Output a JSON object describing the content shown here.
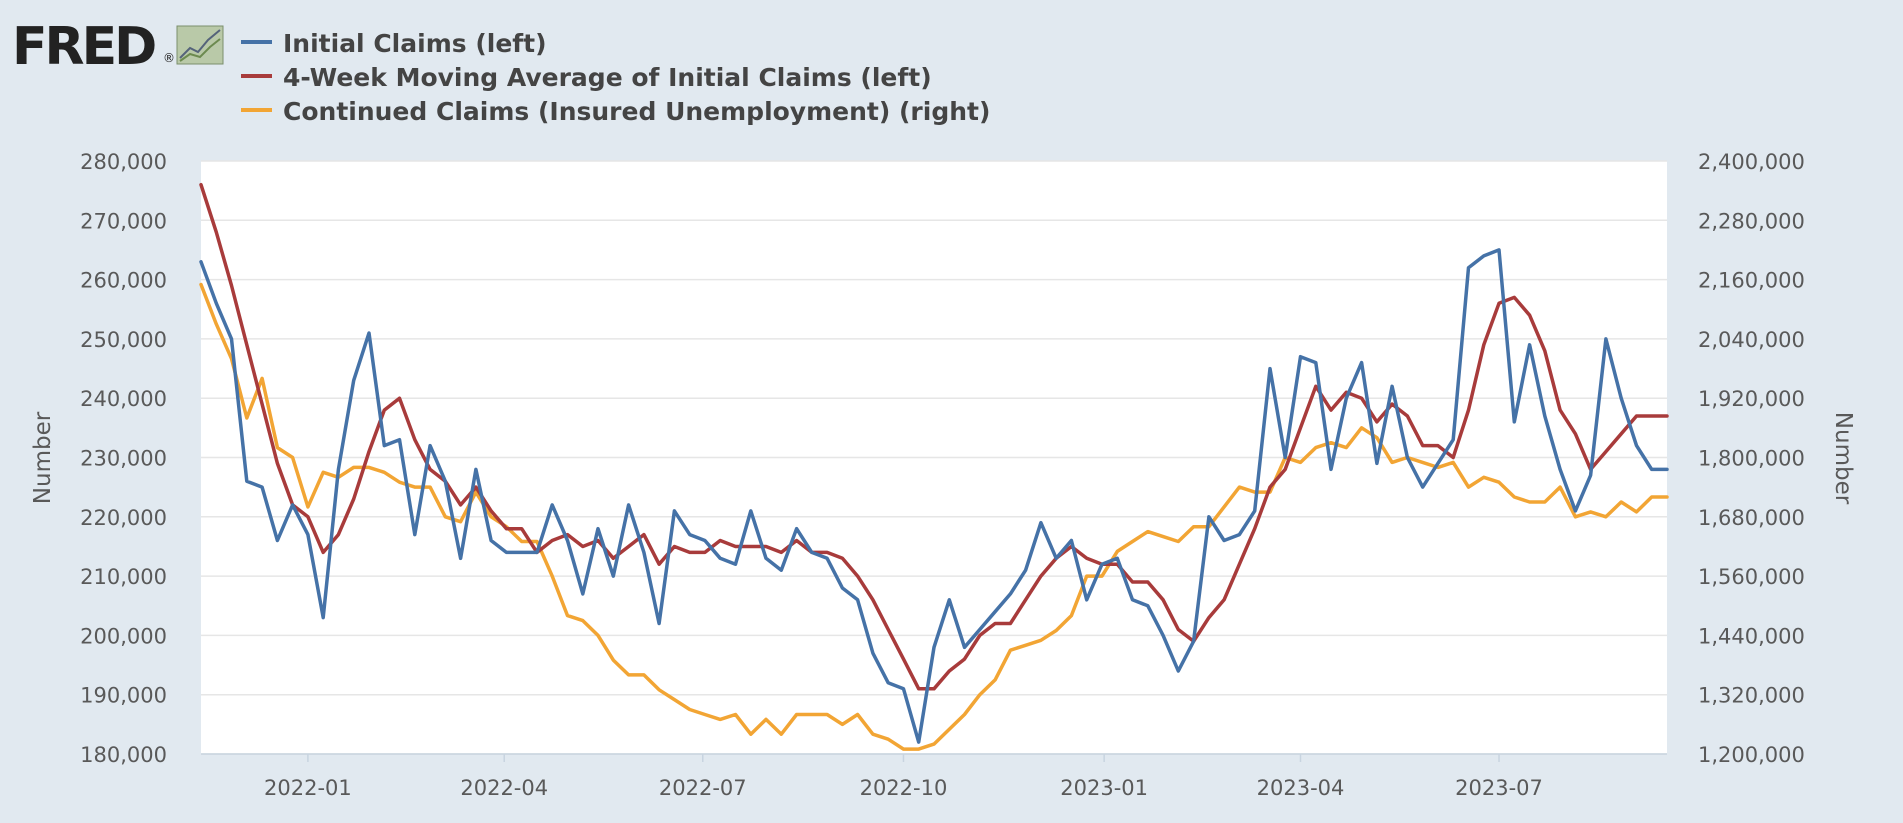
{
  "logo": {
    "text": "FRED",
    "mark": "®",
    "icon": "chart-line-icon"
  },
  "colors": {
    "initial_claims": "#4572a7",
    "moving_average": "#a83b3b",
    "continued_claims": "#f2a534",
    "background": "#e1e9f0",
    "plot_background": "#ffffff",
    "grid": "#e6e6e6"
  },
  "chart_data": {
    "type": "line",
    "title": "",
    "legend_placement": "top-left",
    "grid": true,
    "x_tick_labels": [
      "2022-01",
      "2022-04",
      "2022-07",
      "2022-10",
      "2023-01",
      "2023-04",
      "2023-07"
    ],
    "x_tick_dates": [
      "2022-01-01",
      "2022-04-01",
      "2022-07-01",
      "2022-10-01",
      "2023-01-01",
      "2023-04-01",
      "2023-07-01"
    ],
    "xlim": [
      "2021-11-13",
      "2023-09-16"
    ],
    "left_axis": {
      "label": "Number",
      "ylim": [
        180000,
        280000
      ],
      "tick_labels": [
        "180,000",
        "190,000",
        "200,000",
        "210,000",
        "220,000",
        "230,000",
        "240,000",
        "250,000",
        "260,000",
        "270,000",
        "280,000"
      ]
    },
    "right_axis": {
      "label": "Number",
      "ylim": [
        1200000,
        2400000
      ],
      "tick_labels": [
        "1,200,000",
        "1,320,000",
        "1,440,000",
        "1,560,000",
        "1,680,000",
        "1,800,000",
        "1,920,000",
        "2,040,000",
        "2,160,000",
        "2,280,000",
        "2,400,000"
      ]
    },
    "weeks": [
      "2021-11-13",
      "2021-11-20",
      "2021-11-27",
      "2021-12-04",
      "2021-12-11",
      "2021-12-18",
      "2021-12-25",
      "2022-01-01",
      "2022-01-08",
      "2022-01-15",
      "2022-01-22",
      "2022-01-29",
      "2022-02-05",
      "2022-02-12",
      "2022-02-19",
      "2022-02-26",
      "2022-03-05",
      "2022-03-12",
      "2022-03-19",
      "2022-03-26",
      "2022-04-02",
      "2022-04-09",
      "2022-04-16",
      "2022-04-23",
      "2022-04-30",
      "2022-05-07",
      "2022-05-14",
      "2022-05-21",
      "2022-05-28",
      "2022-06-04",
      "2022-06-11",
      "2022-06-18",
      "2022-06-25",
      "2022-07-02",
      "2022-07-09",
      "2022-07-16",
      "2022-07-23",
      "2022-07-30",
      "2022-08-06",
      "2022-08-13",
      "2022-08-20",
      "2022-08-27",
      "2022-09-03",
      "2022-09-10",
      "2022-09-17",
      "2022-09-24",
      "2022-10-01",
      "2022-10-08",
      "2022-10-15",
      "2022-10-22",
      "2022-10-29",
      "2022-11-05",
      "2022-11-12",
      "2022-11-19",
      "2022-11-26",
      "2022-12-03",
      "2022-12-10",
      "2022-12-17",
      "2022-12-24",
      "2022-12-31",
      "2023-01-07",
      "2023-01-14",
      "2023-01-21",
      "2023-01-28",
      "2023-02-04",
      "2023-02-11",
      "2023-02-18",
      "2023-02-25",
      "2023-03-04",
      "2023-03-11",
      "2023-03-18",
      "2023-03-25",
      "2023-04-01",
      "2023-04-08",
      "2023-04-15",
      "2023-04-22",
      "2023-04-29",
      "2023-05-06",
      "2023-05-13",
      "2023-05-20",
      "2023-05-27",
      "2023-06-03",
      "2023-06-10",
      "2023-06-17",
      "2023-06-24",
      "2023-07-01",
      "2023-07-08",
      "2023-07-15",
      "2023-07-22",
      "2023-07-29",
      "2023-08-05",
      "2023-08-12",
      "2023-08-19",
      "2023-08-26",
      "2023-09-02",
      "2023-09-09",
      "2023-09-16"
    ],
    "series": [
      {
        "name": "Initial Claims (left)",
        "axis": "left",
        "color": "#4572a7",
        "values": [
          263000,
          256000,
          250000,
          226000,
          225000,
          216000,
          222000,
          217000,
          203000,
          228000,
          243000,
          251000,
          232000,
          233000,
          217000,
          232000,
          226000,
          213000,
          228000,
          216000,
          214000,
          214000,
          214000,
          222000,
          216000,
          207000,
          218000,
          210000,
          222000,
          214000,
          202000,
          221000,
          217000,
          216000,
          213000,
          212000,
          221000,
          213000,
          211000,
          218000,
          214000,
          213000,
          208000,
          206000,
          197000,
          192000,
          191000,
          182000,
          198000,
          206000,
          198000,
          201000,
          204000,
          207000,
          211000,
          219000,
          213000,
          216000,
          206000,
          212000,
          213000,
          206000,
          205000,
          200000,
          194000,
          199000,
          220000,
          216000,
          217000,
          221000,
          245000,
          230000,
          247000,
          246000,
          228000,
          240000,
          246000,
          229000,
          242000,
          230000,
          225000,
          229000,
          233000,
          262000,
          264000,
          265000,
          236000,
          249000,
          237000,
          228000,
          221000,
          227000,
          250000,
          240000,
          232000,
          228000,
          228000
        ]
      },
      {
        "name": "4-Week Moving Average of Initial Claims (left)",
        "axis": "left",
        "color": "#a83b3b",
        "values": [
          276000,
          268000,
          259000,
          249000,
          239000,
          229000,
          222000,
          220000,
          214000,
          217000,
          223000,
          231000,
          238000,
          240000,
          233000,
          228000,
          226000,
          222000,
          225000,
          221000,
          218000,
          218000,
          214000,
          216000,
          217000,
          215000,
          216000,
          213000,
          215000,
          217000,
          212000,
          215000,
          214000,
          214000,
          216000,
          215000,
          215000,
          215000,
          214000,
          216000,
          214000,
          214000,
          213000,
          210000,
          206000,
          201000,
          196000,
          191000,
          191000,
          194000,
          196000,
          200000,
          202000,
          202000,
          206000,
          210000,
          213000,
          215000,
          213000,
          212000,
          212000,
          209000,
          209000,
          206000,
          201000,
          199000,
          203000,
          206000,
          212000,
          218000,
          225000,
          228000,
          235000,
          242000,
          238000,
          241000,
          240000,
          236000,
          239000,
          237000,
          232000,
          232000,
          230000,
          238000,
          249000,
          256000,
          257000,
          254000,
          248000,
          238000,
          234000,
          228000,
          231000,
          234000,
          237000,
          237000,
          237000
        ]
      },
      {
        "name": "Continued Claims (Insured Unemployment) (right)",
        "axis": "right",
        "color": "#f2a534",
        "values": [
          2150000,
          2070000,
          2000000,
          1880000,
          1960000,
          1820000,
          1800000,
          1700000,
          1770000,
          1760000,
          1780000,
          1780000,
          1770000,
          1750000,
          1740000,
          1740000,
          1680000,
          1670000,
          1730000,
          1680000,
          1660000,
          1630000,
          1630000,
          1560000,
          1480000,
          1470000,
          1440000,
          1390000,
          1360000,
          1360000,
          1330000,
          1310000,
          1290000,
          1280000,
          1270000,
          1280000,
          1240000,
          1270000,
          1240000,
          1280000,
          1280000,
          1280000,
          1260000,
          1280000,
          1240000,
          1230000,
          1210000,
          1210000,
          1220000,
          1250000,
          1280000,
          1320000,
          1350000,
          1410000,
          1420000,
          1430000,
          1450000,
          1480000,
          1560000,
          1560000,
          1610000,
          1630000,
          1650000,
          1640000,
          1630000,
          1660000,
          1660000,
          1700000,
          1740000,
          1730000,
          1730000,
          1800000,
          1790000,
          1820000,
          1830000,
          1820000,
          1860000,
          1840000,
          1790000,
          1800000,
          1790000,
          1780000,
          1790000,
          1740000,
          1760000,
          1750000,
          1720000,
          1710000,
          1710000,
          1740000,
          1680000,
          1690000,
          1680000,
          1710000,
          1690000,
          1720000,
          1720000
        ]
      }
    ]
  }
}
